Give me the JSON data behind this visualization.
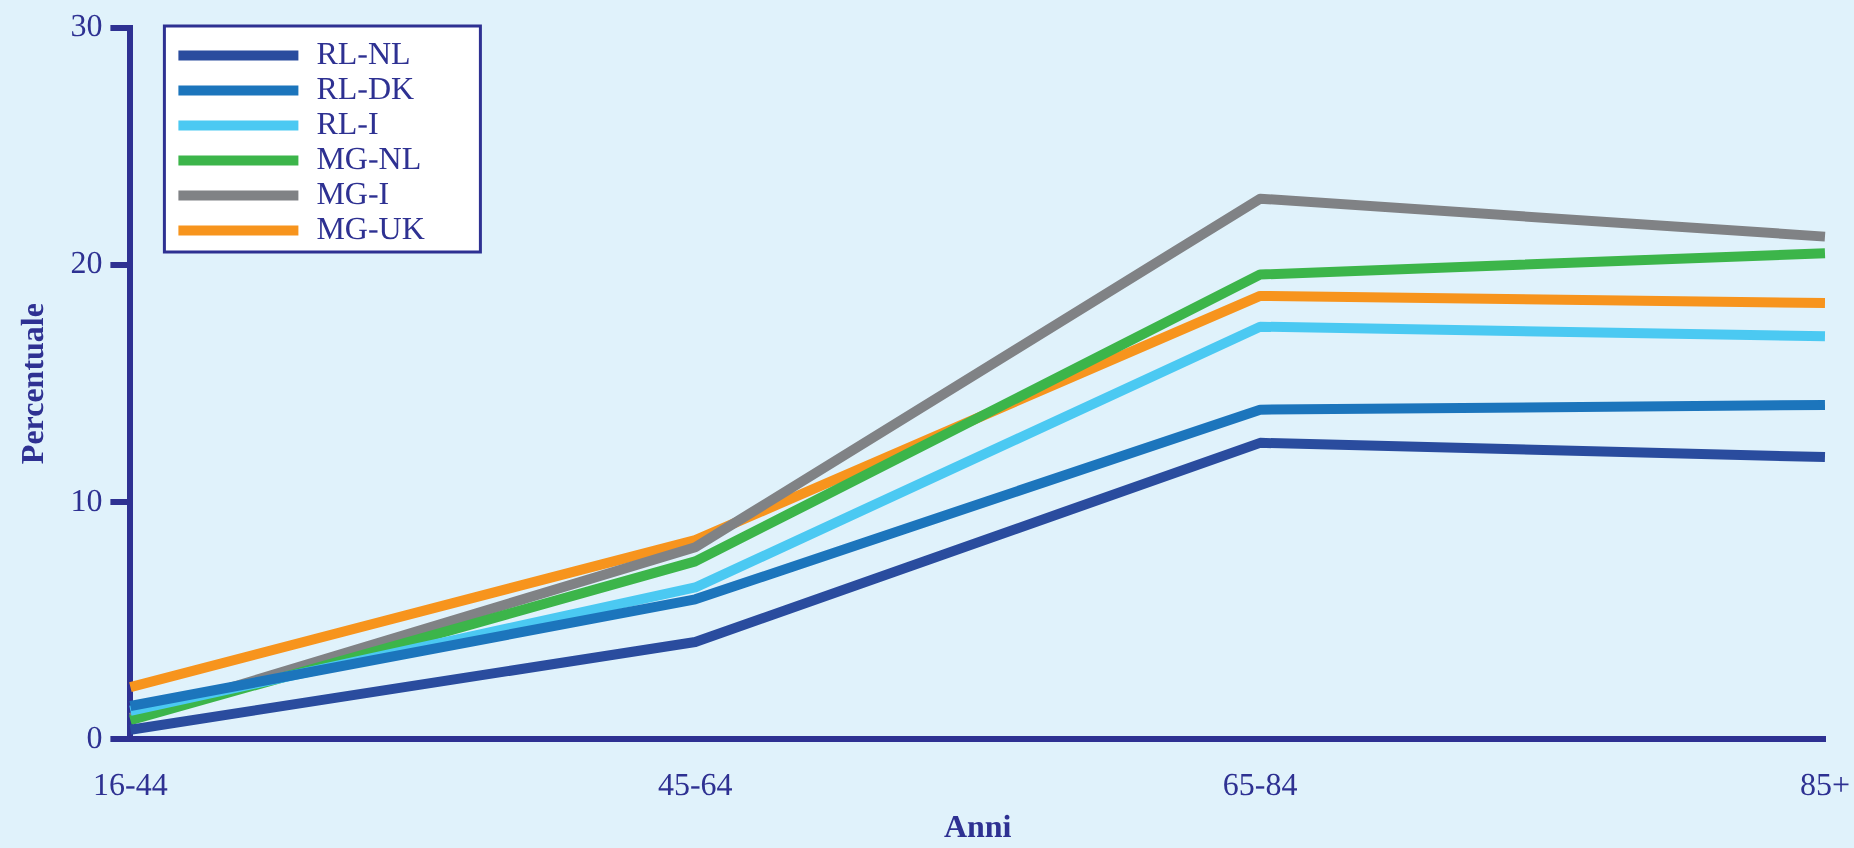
{
  "chart_data": {
    "type": "line",
    "xlabel": "Anni",
    "ylabel": "Percentuale",
    "categories": [
      "16-44",
      "45-64",
      "65-84",
      "85+"
    ],
    "series": [
      {
        "name": "RL-NL",
        "color": "#2a4c9e",
        "values": [
          0.4,
          4.1,
          12.5,
          11.9
        ]
      },
      {
        "name": "RL-DK",
        "color": "#1c75bc",
        "values": [
          1.4,
          5.9,
          13.9,
          14.1
        ]
      },
      {
        "name": "RL-I",
        "color": "#4bc9f2",
        "values": [
          1.2,
          6.4,
          17.4,
          17.0
        ]
      },
      {
        "name": "MG-NL",
        "color": "#3cb54a",
        "values": [
          0.8,
          7.5,
          19.6,
          20.5
        ]
      },
      {
        "name": "MG-I",
        "color": "#808285",
        "values": [
          0.9,
          8.1,
          22.8,
          21.2
        ]
      },
      {
        "name": "MG-UK",
        "color": "#f7941d",
        "values": [
          2.2,
          8.4,
          18.7,
          18.4
        ]
      }
    ],
    "ylim": [
      0,
      30
    ],
    "yticks": [
      0,
      10,
      20,
      30
    ],
    "grid": false,
    "legend": "top left",
    "marker": "none",
    "line_style": "solid"
  }
}
